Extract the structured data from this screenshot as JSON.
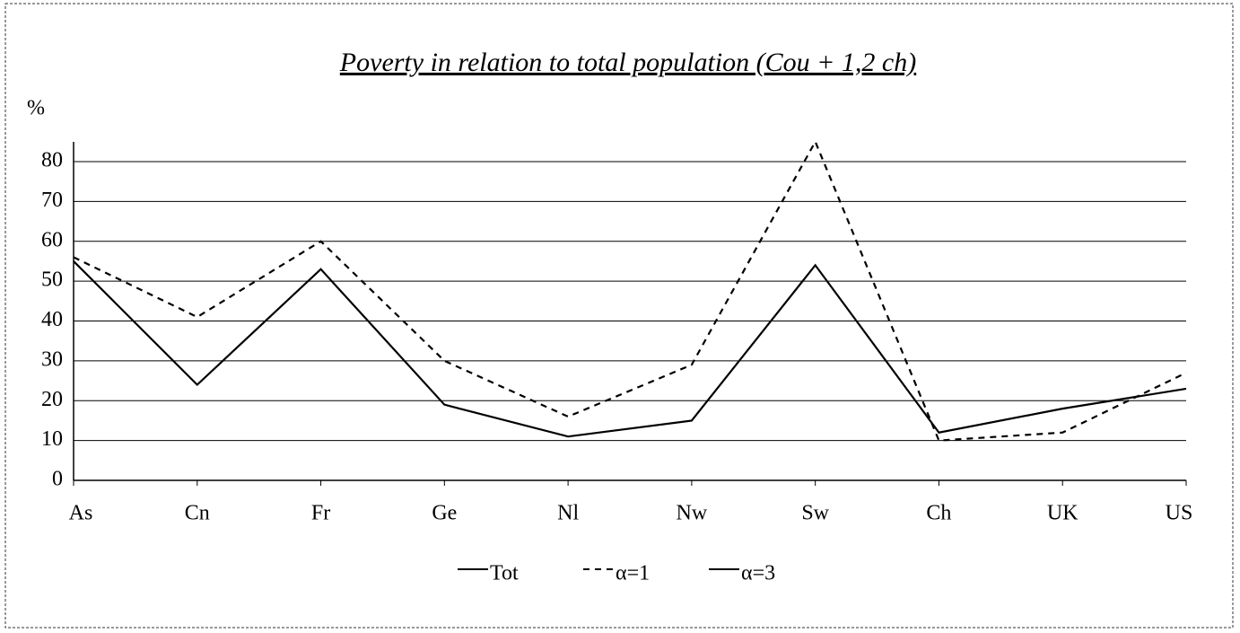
{
  "chart_data": {
    "type": "line",
    "title": "Poverty in relation to total population (Cou + 1,2 ch)",
    "y_label": "%",
    "categories": [
      "As",
      "Cn",
      "Fr",
      "Ge",
      "Nl",
      "Nw",
      "Sw",
      "Ch",
      "UK",
      "US"
    ],
    "series": [
      {
        "name": "Tot",
        "color": "#000000",
        "dash": "solid",
        "values": [
          55,
          24,
          53,
          19,
          11,
          15,
          54,
          12,
          18,
          23
        ]
      },
      {
        "name": "α=1",
        "color": "#000000",
        "dash": "dashed",
        "values": [
          56,
          41,
          60,
          30,
          16,
          29,
          85,
          10,
          12,
          27
        ]
      },
      {
        "name": "α=3",
        "color": "#000000",
        "dash": "solid",
        "values": [
          null,
          null,
          null,
          null,
          null,
          null,
          null,
          null,
          null,
          null
        ]
      }
    ],
    "ylim": [
      0,
      80
    ],
    "yticks": [
      0,
      10,
      20,
      30,
      40,
      50,
      60,
      70,
      80
    ],
    "grid": true,
    "legend": "bottom"
  }
}
